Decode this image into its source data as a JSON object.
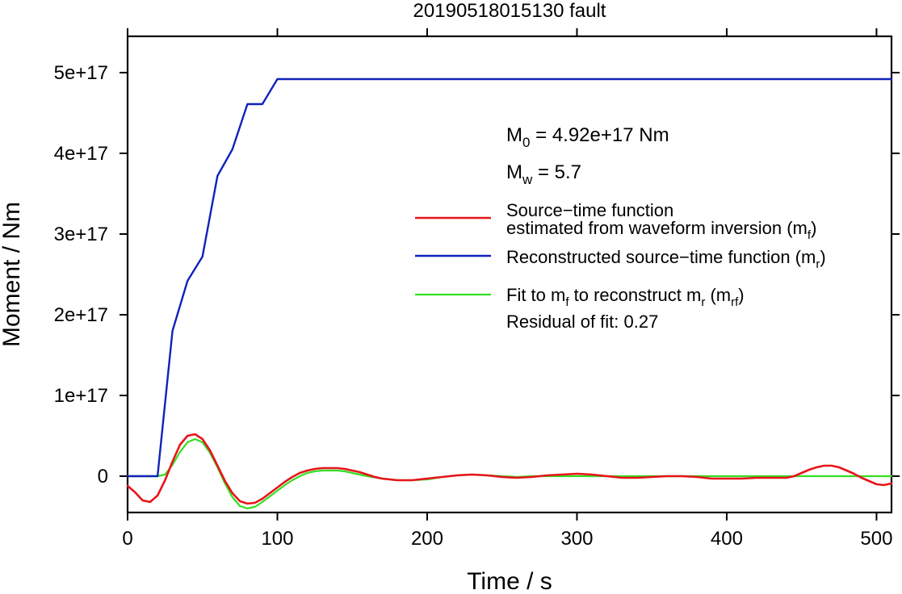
{
  "chart_data": {
    "type": "line",
    "title": "20190518015130 fault",
    "xlabel": "Time / s",
    "ylabel": "Moment / Nm",
    "xlim": [
      0,
      510
    ],
    "ylim": [
      -4.5e+16,
      5.45e+17
    ],
    "x_ticks": [
      0,
      100,
      200,
      300,
      400,
      500
    ],
    "x_tick_labels": [
      "0",
      "100",
      "200",
      "300",
      "400",
      "500"
    ],
    "y_ticks": [
      0,
      1e+17,
      2e+17,
      3e+17,
      4e+17,
      5e+17
    ],
    "y_tick_labels": [
      "0",
      "1e+17",
      "2e+17",
      "3e+17",
      "4e+17",
      "5e+17"
    ],
    "grid": false,
    "legend_position": "right",
    "annotations": {
      "m0_main": "M",
      "m0_sub": "0",
      "m0_rest": " = 4.92e+17 Nm",
      "mw_main": "M",
      "mw_sub": "w",
      "mw_rest": " = 5.7",
      "residual": "Residual of fit: 0.27"
    },
    "legend": [
      {
        "color": "#e8141a",
        "line1": "Source−time function",
        "line2_main": "estimated from waveform inversion (m",
        "line2_sub": "f",
        "line2_tail": ")"
      },
      {
        "color": "#1122bb",
        "line1_main": "Reconstructed source−time function (m",
        "line1_sub": "r",
        "line1_tail": ")"
      },
      {
        "color": "#33dd22",
        "p1": "Fit to m",
        "p1_sub": "f",
        "p2": " to reconstruct m",
        "p2_sub": "r",
        "p3": " (m",
        "p3_sub": "rf",
        "p4": ")"
      }
    ],
    "series": [
      {
        "key": "mf",
        "color": "#e8141a",
        "x": [
          0,
          5,
          10,
          15,
          20,
          25,
          30,
          35,
          40,
          45,
          50,
          55,
          60,
          65,
          70,
          75,
          80,
          85,
          90,
          95,
          100,
          105,
          110,
          115,
          120,
          125,
          130,
          135,
          140,
          145,
          150,
          155,
          160,
          165,
          170,
          175,
          180,
          185,
          190,
          195,
          200,
          210,
          220,
          230,
          240,
          250,
          260,
          270,
          280,
          290,
          300,
          310,
          320,
          330,
          340,
          350,
          360,
          370,
          380,
          390,
          400,
          410,
          420,
          430,
          440,
          445,
          450,
          455,
          460,
          465,
          470,
          475,
          480,
          485,
          490,
          495,
          500,
          505,
          510
        ],
        "y": [
          -1.2e+16,
          -2e+16,
          -3e+16,
          -3.2e+16,
          -2.4e+16,
          -5000000000000000.0,
          1.8e+16,
          3.9e+16,
          5e+16,
          5.2e+16,
          4.6e+16,
          3.2e+16,
          1.3e+16,
          -6000000000000000.0,
          -2.1e+16,
          -3.1e+16,
          -3.4e+16,
          -3.3e+16,
          -2.8e+16,
          -2.1e+16,
          -1.4e+16,
          -7000000000000000.0,
          -1000000000000000.0,
          4000000000000000.0,
          7000000000000000.0,
          9000000000000000.0,
          1e+16,
          1e+16,
          1e+16,
          9000000000000000.0,
          7000000000000000.0,
          5000000000000000.0,
          2000000000000000.0,
          -1000000000000000.0,
          -3000000000000000.0,
          -4000000000000000.0,
          -5000000000000000.0,
          -5000000000000000.0,
          -5000000000000000.0,
          -4000000000000000.0,
          -3000000000000000.0,
          -1000000000000000.0,
          1000000000000000.0,
          2000000000000000.0,
          1000000000000000.0,
          -1000000000000000.0,
          -2000000000000000.0,
          -1000000000000000.0,
          1000000000000000.0,
          2000000000000000.0,
          3000000000000000.0,
          2000000000000000.0,
          0,
          -2000000000000000.0,
          -2000000000000000.0,
          -1000000000000000.0,
          0,
          0,
          -1000000000000000.0,
          -3000000000000000.0,
          -3000000000000000.0,
          -3000000000000000.0,
          -2000000000000000.0,
          -2000000000000000.0,
          -2000000000000000.0,
          0,
          4000000000000000.0,
          8000000000000000.0,
          1.1e+16,
          1.3e+16,
          1.3e+16,
          1.1e+16,
          7000000000000000.0,
          3000000000000000.0,
          -2000000000000000.0,
          -6000000000000000.0,
          -1e+16,
          -1.1e+16,
          -9000000000000000.0
        ]
      },
      {
        "key": "mr",
        "color": "#1122bb",
        "x": [
          0,
          20,
          30,
          40,
          50,
          60,
          70,
          80,
          90,
          100,
          510
        ],
        "y": [
          0,
          0,
          1.8e+17,
          2.42e+17,
          2.72e+17,
          3.72e+17,
          4.05e+17,
          4.61e+17,
          4.61e+17,
          4.92e+17,
          4.92e+17
        ]
      },
      {
        "key": "mrf",
        "color": "#33dd22",
        "x": [
          0,
          20,
          25,
          30,
          35,
          40,
          45,
          50,
          55,
          60,
          65,
          70,
          75,
          80,
          85,
          90,
          95,
          100,
          105,
          110,
          115,
          120,
          125,
          130,
          135,
          140,
          145,
          150,
          155,
          160,
          170,
          180,
          190,
          200,
          210,
          220,
          230,
          240,
          250,
          260,
          270,
          280,
          300,
          350,
          400,
          450,
          510
        ],
        "y": [
          0,
          0,
          2000000000000000.0,
          1.4e+16,
          3e+16,
          4.2e+16,
          4.6e+16,
          4.2e+16,
          2.9e+16,
          1.1e+16,
          -9000000000000000.0,
          -2.6e+16,
          -3.7e+16,
          -4e+16,
          -3.8e+16,
          -3.2e+16,
          -2.5e+16,
          -1.8e+16,
          -1.1e+16,
          -5000000000000000.0,
          0,
          4000000000000000.0,
          6000000000000000.0,
          7000000000000000.0,
          7000000000000000.0,
          7000000000000000.0,
          6000000000000000.0,
          4000000000000000.0,
          2000000000000000.0,
          0,
          -3000000000000000.0,
          -5000000000000000.0,
          -5000000000000000.0,
          -4000000000000000.0,
          -1000000000000000.0,
          1000000000000000.0,
          2000000000000000.0,
          1000000000000000.0,
          0,
          -1000000000000000.0,
          0,
          0,
          0,
          0,
          0,
          0,
          0
        ]
      }
    ]
  }
}
